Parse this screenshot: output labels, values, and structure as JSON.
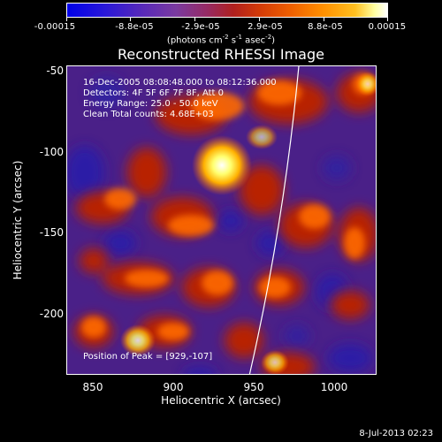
{
  "colorbar": {
    "tick_labels": [
      "-0.00015",
      "-8.8e-05",
      "-2.9e-05",
      "2.9e-05",
      "8.8e-05",
      "0.00015"
    ],
    "units_main": "(photons cm",
    "units_exp1": "-2",
    "units_mid": " s",
    "units_exp2": "-1",
    "units_mid2": " asec",
    "units_exp3": "-2",
    "units_end": ")"
  },
  "title": "Reconstructed RHESSI Image",
  "annotations": {
    "line1": "16-Dec-2005 08:08:48.000 to 08:12:36.000",
    "line2": "Detectors: 4F 5F 6F 7F 8F, Att 0",
    "line3": "Energy Range: 25.0 - 50.0 keV",
    "line4": "Clean    Total counts: 4.68E+03",
    "peak": "Position of Peak = [929,-107]"
  },
  "axes": {
    "x_label": "Heliocentric X (arcsec)",
    "y_label": "Heliocentric Y (arcsec)",
    "x_ticks": [
      "850",
      "900",
      "950",
      "1000"
    ],
    "y_ticks": [
      "-50",
      "-100",
      "-150",
      "-200"
    ]
  },
  "timestamp": "8-Jul-2013 02:23",
  "colors": {
    "background": "#000000",
    "limb_line": "#ffffff"
  }
}
